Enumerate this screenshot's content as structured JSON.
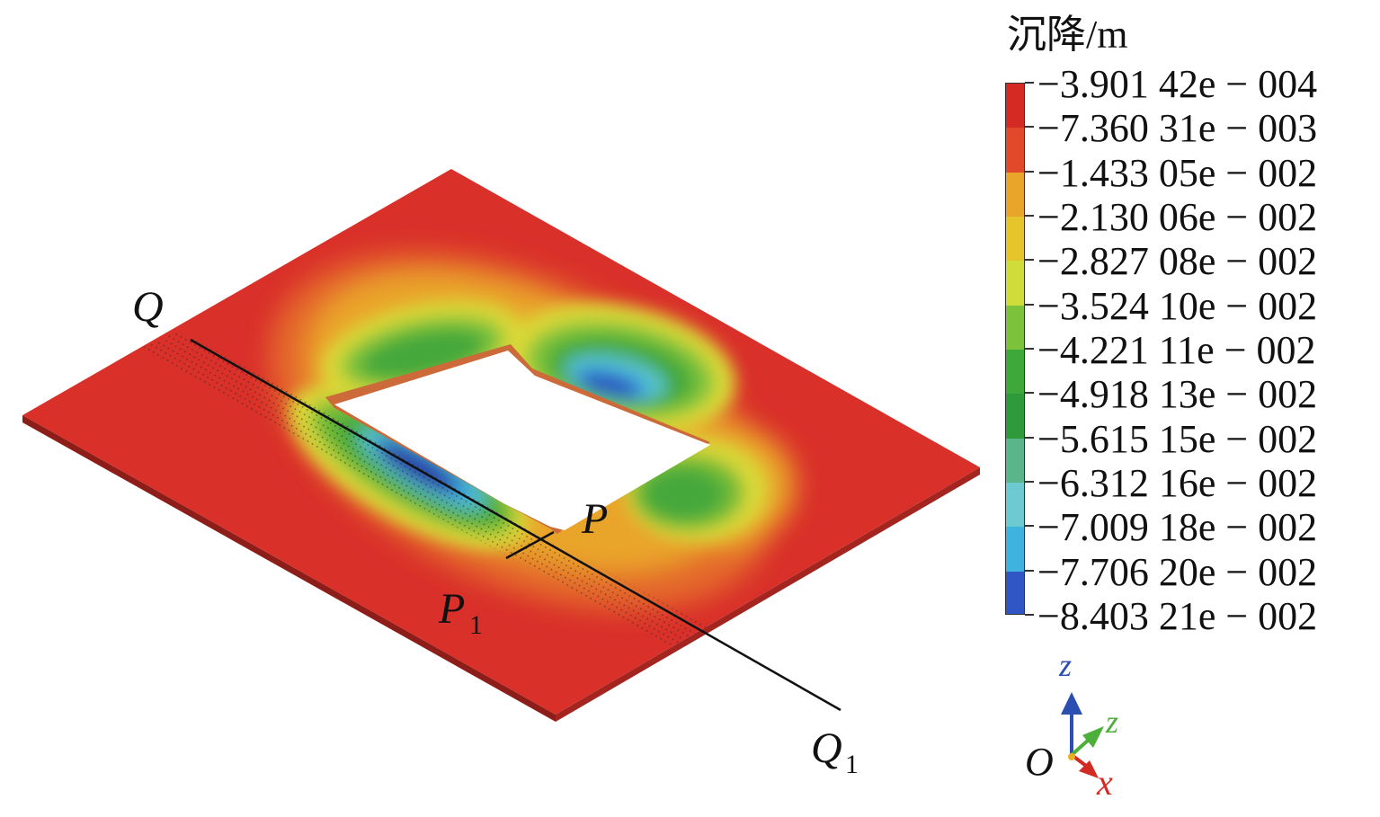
{
  "figure": {
    "labels": {
      "Q": "Q",
      "Q1": "Q",
      "Q1_sub": "1",
      "P": "P",
      "P1": "P",
      "P1_sub": "1"
    }
  },
  "legend": {
    "title": "沉降/m",
    "entries": [
      {
        "value": "−3.901 42e − 004",
        "color": "#d42a24"
      },
      {
        "value": "−7.360 31e − 003",
        "color": "#e0492a"
      },
      {
        "value": "−1.433 05e − 002",
        "color": "#e8a52a"
      },
      {
        "value": "−2.130 06e − 002",
        "color": "#e6c42c"
      },
      {
        "value": "−2.827 08e − 002",
        "color": "#cfdc3a"
      },
      {
        "value": "−3.524 10e − 002",
        "color": "#7cc23a"
      },
      {
        "value": "−4.221 11e − 002",
        "color": "#3ea83a"
      },
      {
        "value": "−4.918 13e − 002",
        "color": "#2f9a3c"
      },
      {
        "value": "−5.615 15e − 002",
        "color": "#5ab58a"
      },
      {
        "value": "−6.312 16e − 002",
        "color": "#6ccad0"
      },
      {
        "value": "−7.009 18e − 002",
        "color": "#3fb2e0"
      },
      {
        "value": "−7.706 20e − 002",
        "color": "#2f56c4"
      },
      {
        "value": "−8.403 21e − 002",
        "color": "#2236a0"
      }
    ]
  },
  "axes": {
    "z_up": "z",
    "z_diag": "z",
    "x": "x",
    "origin": "O",
    "colors": {
      "z_up": "#2b4fb0",
      "z_diag": "#4caf3a",
      "x": "#d42a24"
    }
  }
}
